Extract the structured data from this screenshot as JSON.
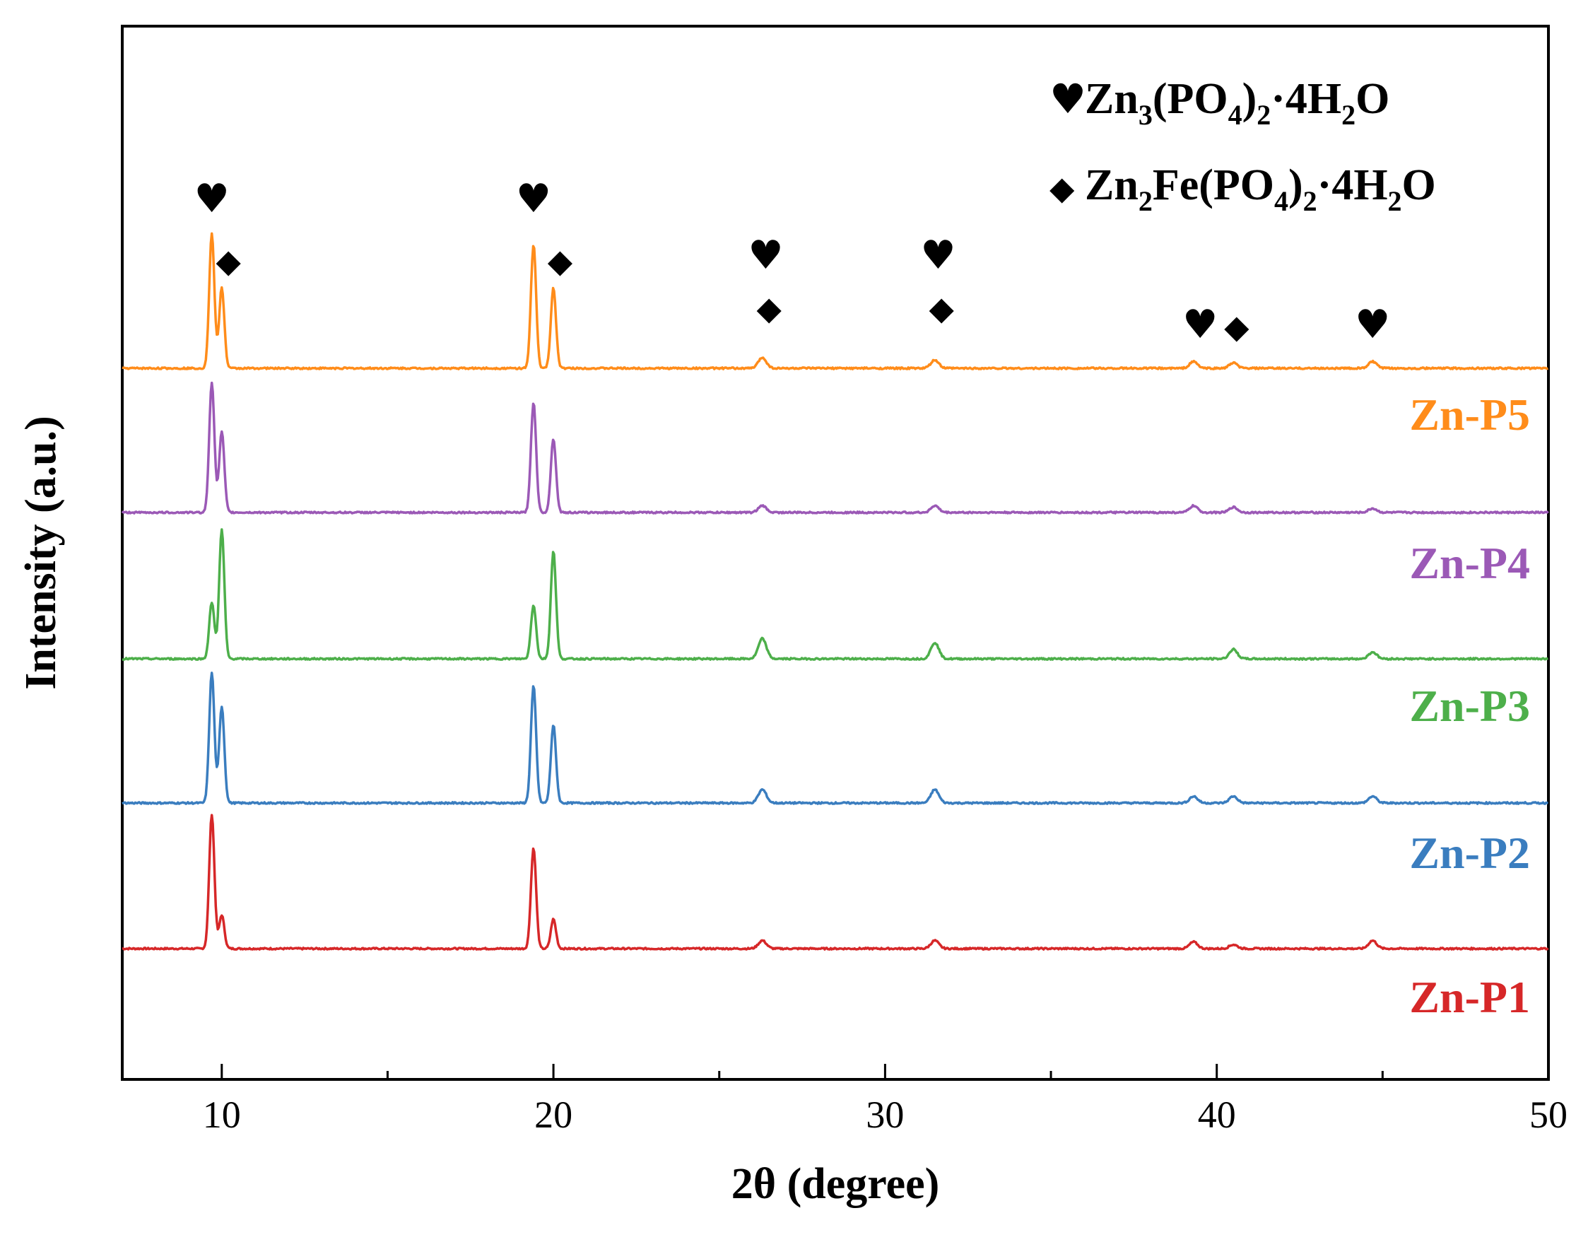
{
  "chart_data": {
    "type": "line",
    "title": "",
    "xlabel": "2θ (degree)",
    "ylabel": "Intensity (a.u.)",
    "xlim": [
      7,
      50
    ],
    "xticks": [
      10,
      20,
      30,
      40,
      50
    ],
    "legend": {
      "position": "top-right",
      "entries": [
        {
          "symbol": "♥",
          "icon": "heart-icon",
          "formula_parts": [
            "Zn",
            "3",
            "(PO",
            "4",
            ")",
            "2",
            "·4H",
            "2",
            "O"
          ],
          "label": "Zn3(PO4)2·4H2O"
        },
        {
          "symbol": "◆",
          "icon": "diamond-icon",
          "formula_parts": [
            "Zn",
            "2",
            "Fe(PO",
            "4",
            ")",
            "2",
            "·4H",
            "2",
            "O"
          ],
          "label": "Zn2Fe(PO4)2·4H2O"
        }
      ]
    },
    "series": [
      {
        "name": "Zn-P1",
        "color": "#d62728",
        "baseline": 0,
        "peaks": [
          [
            9.7,
            1.0
          ],
          [
            10.0,
            0.25
          ],
          [
            19.4,
            0.75
          ],
          [
            20.0,
            0.22
          ],
          [
            26.3,
            0.06
          ],
          [
            31.5,
            0.06
          ],
          [
            39.3,
            0.05
          ],
          [
            40.5,
            0.03
          ],
          [
            44.7,
            0.06
          ]
        ]
      },
      {
        "name": "Zn-P2",
        "color": "#3a7dbf",
        "baseline": 1,
        "peaks": [
          [
            9.7,
            0.97
          ],
          [
            10.0,
            0.72
          ],
          [
            19.4,
            0.87
          ],
          [
            20.0,
            0.58
          ],
          [
            26.3,
            0.1
          ],
          [
            31.5,
            0.1
          ],
          [
            39.3,
            0.05
          ],
          [
            40.5,
            0.05
          ],
          [
            44.7,
            0.05
          ]
        ]
      },
      {
        "name": "Zn-P3",
        "color": "#4daf4a",
        "baseline": 2,
        "peaks": [
          [
            9.7,
            0.42
          ],
          [
            10.0,
            0.96
          ],
          [
            19.4,
            0.4
          ],
          [
            20.0,
            0.8
          ],
          [
            26.3,
            0.15
          ],
          [
            31.5,
            0.12
          ],
          [
            40.5,
            0.07
          ],
          [
            44.7,
            0.05
          ]
        ]
      },
      {
        "name": "Zn-P4",
        "color": "#9b59b6",
        "baseline": 3,
        "peaks": [
          [
            9.7,
            0.97
          ],
          [
            10.0,
            0.6
          ],
          [
            19.4,
            0.82
          ],
          [
            20.0,
            0.55
          ],
          [
            26.3,
            0.05
          ],
          [
            31.5,
            0.05
          ],
          [
            39.3,
            0.05
          ],
          [
            40.5,
            0.04
          ],
          [
            44.7,
            0.03
          ]
        ]
      },
      {
        "name": "Zn-P5",
        "color": "#ff8c1a",
        "baseline": 4,
        "peaks": [
          [
            9.7,
            1.0
          ],
          [
            10.0,
            0.6
          ],
          [
            19.4,
            0.92
          ],
          [
            20.0,
            0.6
          ],
          [
            26.3,
            0.08
          ],
          [
            31.5,
            0.06
          ],
          [
            39.3,
            0.05
          ],
          [
            40.5,
            0.04
          ],
          [
            44.7,
            0.05
          ]
        ]
      }
    ],
    "annotations": [
      {
        "symbol": "♥",
        "x": 9.7,
        "level": "high",
        "icon": "heart-icon"
      },
      {
        "symbol": "◆",
        "x": 10.2,
        "level": "high-low",
        "icon": "diamond-icon"
      },
      {
        "symbol": "♥",
        "x": 19.4,
        "level": "high",
        "icon": "heart-icon"
      },
      {
        "symbol": "◆",
        "x": 20.2,
        "level": "high-low",
        "icon": "diamond-icon"
      },
      {
        "symbol": "♥",
        "x": 26.4,
        "level": "mid",
        "icon": "heart-icon"
      },
      {
        "symbol": "◆",
        "x": 26.5,
        "level": "mid-low",
        "icon": "diamond-icon"
      },
      {
        "symbol": "♥",
        "x": 31.6,
        "level": "mid",
        "icon": "heart-icon"
      },
      {
        "symbol": "◆",
        "x": 31.7,
        "level": "mid-low",
        "icon": "diamond-icon"
      },
      {
        "symbol": "♥",
        "x": 39.5,
        "level": "low",
        "icon": "heart-icon"
      },
      {
        "symbol": "◆",
        "x": 40.6,
        "level": "low",
        "icon": "diamond-icon"
      },
      {
        "symbol": "♥",
        "x": 44.7,
        "level": "low",
        "icon": "heart-icon"
      }
    ]
  }
}
